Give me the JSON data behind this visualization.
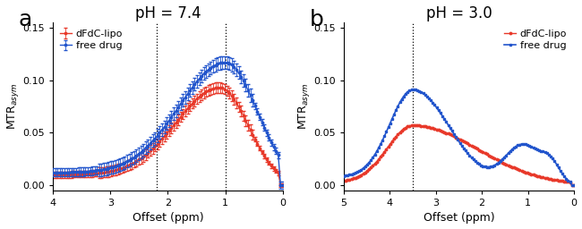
{
  "panel_a": {
    "title": "pH = 7.4",
    "xlabel": "Offset (ppm)",
    "ylabel": "MTR$_{asym}$",
    "xlim": [
      4,
      0
    ],
    "ylim": [
      -0.005,
      0.155
    ],
    "yticks": [
      0.0,
      0.05,
      0.1,
      0.15
    ],
    "xticks": [
      4,
      3,
      2,
      1,
      0
    ],
    "vlines": [
      2.2,
      1.0
    ],
    "lipo_color": "#e8392a",
    "free_color": "#2255cc",
    "lipo_label": "dFdC-lipo",
    "free_label": "free drug"
  },
  "panel_b": {
    "title": "pH = 3.0",
    "xlabel": "Offset (ppm)",
    "ylabel": "MTR$_{asym}$",
    "xlim": [
      5,
      0
    ],
    "ylim": [
      -0.005,
      0.155
    ],
    "yticks": [
      0.0,
      0.05,
      0.1,
      0.15
    ],
    "xticks": [
      5,
      4,
      3,
      2,
      1,
      0
    ],
    "vlines": [
      3.5
    ],
    "lipo_color": "#e8392a",
    "free_color": "#2255cc",
    "lipo_label": "dFdC-lipo",
    "free_label": "free drug"
  },
  "panel_label_fontsize": 18,
  "title_fontsize": 12,
  "axis_fontsize": 9,
  "tick_fontsize": 8,
  "legend_fontsize": 8
}
